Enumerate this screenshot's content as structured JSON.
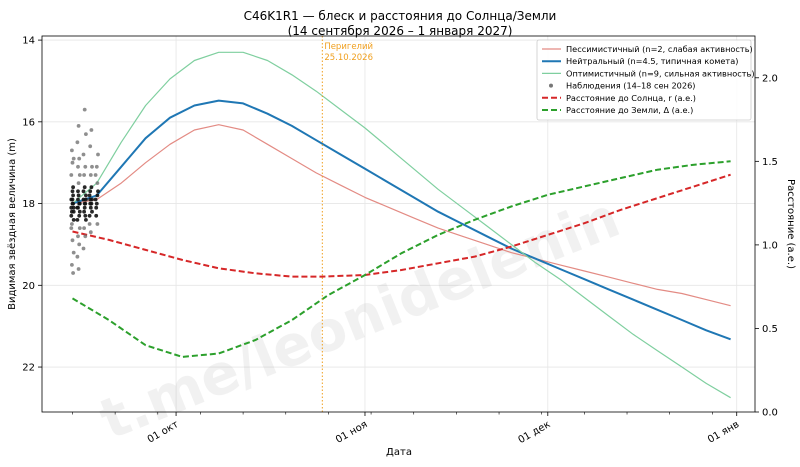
{
  "chart_data": {
    "type": "line",
    "title_line1": "C46K1R1 — блеск и расстояния до Солнца/Земли",
    "title_line2": "(14 сентября 2026 – 1 января 2027)",
    "xlabel": "Дата",
    "ylabel_left": "Видимая звёздная величина (m)",
    "ylabel_right": "Расстояние (а.е.)",
    "x_tick_labels": [
      "01 окт",
      "01 ноя",
      "01 дек",
      "01 янв"
    ],
    "x_tick_days": [
      17,
      48,
      78,
      109
    ],
    "xlim_days": [
      -5,
      112
    ],
    "ylim_left": [
      23.1,
      13.9
    ],
    "ylim_right": [
      0.0,
      2.25
    ],
    "left_ticks": [
      14,
      16,
      18,
      20,
      22
    ],
    "right_ticks": [
      "0.0",
      "0.5",
      "1.0",
      "1.5",
      "2.0"
    ],
    "right_tick_values": [
      0.0,
      0.5,
      1.0,
      1.5,
      2.0
    ],
    "grid": true,
    "legend_position": "top-right",
    "perihelion": {
      "day": 41,
      "label_line1": "Перигелий",
      "label_line2": "25.10.2026",
      "color": "#f0a020"
    },
    "legend": [
      {
        "label": "Пессимистичный (n=2, слабая активность)",
        "kind": "line",
        "color": "#e38b84",
        "dash": "",
        "width": 1.2
      },
      {
        "label": "Нейтральный (n=4.5, типичная комета)",
        "kind": "line",
        "color": "#1f77b4",
        "dash": "",
        "width": 2
      },
      {
        "label": "Оптимистичный (n=9, сильная активность)",
        "kind": "line",
        "color": "#7fcf9f",
        "dash": "",
        "width": 1.2
      },
      {
        "label": "Наблюдения (14–18 сен 2026)",
        "kind": "dot",
        "color": "#777777"
      },
      {
        "label": "Расстояние до Солнца, r (а.е.)",
        "kind": "line",
        "color": "#d62728",
        "dash": "6,3",
        "width": 2
      },
      {
        "label": "Расстояние до Земли, Δ (а.е.)",
        "kind": "line",
        "color": "#2ca02c",
        "dash": "6,3",
        "width": 2
      }
    ],
    "series": [
      {
        "name": "Пессимистичный (n=2, слабая активность)",
        "axis": "left",
        "color": "#e38b84",
        "width": 1.2,
        "dash": "",
        "x": [
          0,
          4,
          8,
          12,
          16,
          20,
          24,
          28,
          32,
          36,
          40,
          44,
          48,
          52,
          56,
          60,
          64,
          68,
          72,
          76,
          80,
          84,
          88,
          92,
          96,
          100,
          104,
          108
        ],
        "y": [
          18.0,
          17.9,
          17.5,
          17.0,
          16.55,
          16.2,
          16.07,
          16.2,
          16.55,
          16.9,
          17.25,
          17.55,
          17.85,
          18.1,
          18.35,
          18.6,
          18.8,
          19.0,
          19.2,
          19.35,
          19.5,
          19.65,
          19.8,
          19.95,
          20.1,
          20.2,
          20.35,
          20.5
        ]
      },
      {
        "name": "Нейтральный (n=4.5, типичная комета)",
        "axis": "left",
        "color": "#1f77b4",
        "width": 2,
        "dash": "",
        "x": [
          0,
          4,
          8,
          12,
          16,
          20,
          24,
          28,
          32,
          36,
          40,
          44,
          48,
          52,
          56,
          60,
          64,
          68,
          72,
          76,
          80,
          84,
          88,
          92,
          96,
          100,
          104,
          108
        ],
        "y": [
          18.0,
          17.8,
          17.1,
          16.4,
          15.9,
          15.6,
          15.48,
          15.55,
          15.8,
          16.1,
          16.45,
          16.8,
          17.15,
          17.5,
          17.85,
          18.2,
          18.5,
          18.8,
          19.1,
          19.35,
          19.6,
          19.85,
          20.1,
          20.35,
          20.6,
          20.85,
          21.1,
          21.32
        ]
      },
      {
        "name": "Оптимистичный (n=9, сильная активность)",
        "axis": "left",
        "color": "#7fcf9f",
        "width": 1.2,
        "dash": "",
        "x": [
          0,
          4,
          8,
          12,
          16,
          20,
          24,
          28,
          32,
          36,
          40,
          44,
          48,
          52,
          56,
          60,
          64,
          68,
          72,
          76,
          80,
          84,
          88,
          92,
          96,
          100,
          104,
          108
        ],
        "y": [
          18.0,
          17.5,
          16.5,
          15.6,
          14.95,
          14.5,
          14.3,
          14.3,
          14.5,
          14.85,
          15.25,
          15.7,
          16.15,
          16.65,
          17.15,
          17.65,
          18.1,
          18.55,
          19.0,
          19.45,
          19.85,
          20.3,
          20.75,
          21.2,
          21.6,
          22.0,
          22.4,
          22.75
        ]
      },
      {
        "name": "Расстояние до Солнца, r (а.е.)",
        "axis": "right",
        "color": "#d62728",
        "width": 2,
        "dash": "6,3",
        "x": [
          0,
          6,
          12,
          18,
          24,
          30,
          36,
          41,
          48,
          54,
          60,
          66,
          72,
          78,
          84,
          90,
          96,
          102,
          108
        ],
        "y": [
          1.08,
          1.03,
          0.97,
          0.91,
          0.86,
          0.83,
          0.81,
          0.81,
          0.82,
          0.85,
          0.89,
          0.93,
          0.99,
          1.06,
          1.13,
          1.21,
          1.28,
          1.35,
          1.42
        ]
      },
      {
        "name": "Расстояние до Земли, Δ (а.е.)",
        "axis": "right",
        "color": "#2ca02c",
        "width": 2,
        "dash": "6,3",
        "x": [
          0,
          6,
          12,
          18,
          24,
          30,
          36,
          42,
          48,
          54,
          60,
          66,
          72,
          78,
          84,
          90,
          96,
          102,
          108
        ],
        "y": [
          0.68,
          0.55,
          0.4,
          0.33,
          0.35,
          0.43,
          0.55,
          0.7,
          0.82,
          0.95,
          1.06,
          1.15,
          1.23,
          1.3,
          1.35,
          1.4,
          1.45,
          1.48,
          1.5
        ]
      }
    ],
    "observations": {
      "name": "Наблюдения (14–18 сен 2026)",
      "color": "#555555",
      "x": [
        0.0,
        0.0,
        0.0,
        0.0,
        0.0,
        0.0,
        0.0,
        0.0,
        0.0,
        0.0,
        0.0,
        0.0,
        0.0,
        0.0,
        0.0,
        0.0,
        0.0,
        0.0,
        0.0,
        0.0,
        0.0,
        0.0,
        0.0,
        1.0,
        1.0,
        1.0,
        1.0,
        1.0,
        1.0,
        1.0,
        1.0,
        1.0,
        1.0,
        1.0,
        1.0,
        1.0,
        1.0,
        1.0,
        1.0,
        1.0,
        1.0,
        1.0,
        1.0,
        1.0,
        2.0,
        2.0,
        2.0,
        2.0,
        2.0,
        2.0,
        2.0,
        2.0,
        2.0,
        2.0,
        2.0,
        2.0,
        2.0,
        2.0,
        2.0,
        2.0,
        2.0,
        2.0,
        2.0,
        3.0,
        3.0,
        3.0,
        3.0,
        3.0,
        3.0,
        3.0,
        3.0,
        3.0,
        3.0,
        3.0,
        3.0,
        3.0,
        3.0,
        3.0,
        3.0,
        4.0,
        4.0,
        4.0,
        4.0,
        4.0,
        4.0,
        4.0,
        4.0,
        4.0,
        4.0,
        4.0
      ],
      "y": [
        17.9,
        18.0,
        18.1,
        18.2,
        17.8,
        18.3,
        17.7,
        18.4,
        18.5,
        17.6,
        18.6,
        18.9,
        19.2,
        19.5,
        19.7,
        17.3,
        17.0,
        16.9,
        16.7,
        18.0,
        18.1,
        17.9,
        18.2,
        17.9,
        18.0,
        18.1,
        17.8,
        18.2,
        17.7,
        18.3,
        18.4,
        17.5,
        17.3,
        17.1,
        16.9,
        16.5,
        16.1,
        18.6,
        18.8,
        19.0,
        19.3,
        19.6,
        18.0,
        18.1,
        18.0,
        17.9,
        18.1,
        17.8,
        18.2,
        18.3,
        17.7,
        17.6,
        18.4,
        17.3,
        17.1,
        16.8,
        15.7,
        16.3,
        18.6,
        18.8,
        19.1,
        18.0,
        17.9,
        17.9,
        18.0,
        17.8,
        18.1,
        18.2,
        17.7,
        17.6,
        18.3,
        17.3,
        17.1,
        16.6,
        16.2,
        18.5,
        18.7,
        17.9,
        18.0,
        17.8,
        17.9,
        18.0,
        17.7,
        18.1,
        17.5,
        17.3,
        17.1,
        16.8,
        18.3,
        18.5
      ]
    },
    "watermark": "t.me/leonidelenin"
  }
}
